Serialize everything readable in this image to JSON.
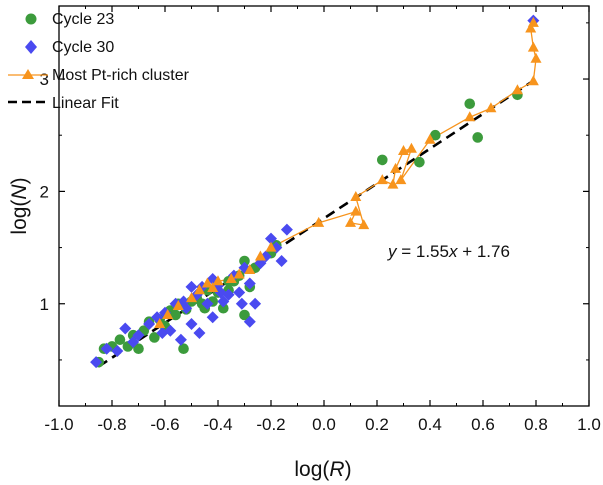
{
  "chart_data": {
    "type": "scatter",
    "xlabel": "log(R)",
    "ylabel": "log(N)",
    "xlim": [
      -1.0,
      1.0
    ],
    "ylim": [
      0.09,
      3.65
    ],
    "xticks": [
      -1.0,
      -0.8,
      -0.6,
      -0.4,
      -0.2,
      0.0,
      0.2,
      0.4,
      0.6,
      0.8,
      1.0
    ],
    "xtick_labels": [
      "-1.0",
      "-0.8",
      "-0.6",
      "-0.4",
      "-0.2",
      "0.0",
      "0.2",
      "0.4",
      "0.6",
      "0.8",
      "1.0"
    ],
    "yticks": [
      1,
      2,
      3
    ],
    "ytick_labels": [
      "1",
      "2",
      "3"
    ],
    "legend_position": "top-left",
    "annotation": {
      "y": "y",
      "eq": " = 1.55",
      "x": "x",
      "rest": " + 1.76"
    },
    "colors": {
      "cycle23": "#3c9b3c",
      "cycle30": "#4a4af0",
      "cluster": "#f7941d",
      "fit": "#000000"
    },
    "series": [
      {
        "name": "Cycle 23",
        "marker": "circle",
        "points": [
          [
            -0.85,
            0.48
          ],
          [
            -0.83,
            0.6
          ],
          [
            -0.8,
            0.62
          ],
          [
            -0.77,
            0.68
          ],
          [
            -0.74,
            0.62
          ],
          [
            -0.72,
            0.72
          ],
          [
            -0.7,
            0.6
          ],
          [
            -0.68,
            0.76
          ],
          [
            -0.66,
            0.84
          ],
          [
            -0.64,
            0.7
          ],
          [
            -0.62,
            0.86
          ],
          [
            -0.6,
            0.8
          ],
          [
            -0.58,
            0.94
          ],
          [
            -0.56,
            0.9
          ],
          [
            -0.55,
            1.0
          ],
          [
            -0.53,
            0.6
          ],
          [
            -0.52,
            0.95
          ],
          [
            -0.5,
            1.02
          ],
          [
            -0.48,
            1.05
          ],
          [
            -0.46,
            1.0
          ],
          [
            -0.44,
            1.12
          ],
          [
            -0.42,
            1.02
          ],
          [
            -0.4,
            1.1
          ],
          [
            -0.38,
            0.96
          ],
          [
            -0.36,
            1.2
          ],
          [
            -0.34,
            1.2
          ],
          [
            -0.32,
            1.25
          ],
          [
            -0.3,
            0.9
          ],
          [
            -0.28,
            1.15
          ],
          [
            -0.26,
            1.32
          ],
          [
            -0.3,
            1.38
          ],
          [
            -0.2,
            1.45
          ],
          [
            -0.18,
            1.52
          ],
          [
            -0.36,
            1.12
          ],
          [
            -0.45,
            0.96
          ],
          [
            0.22,
            2.28
          ],
          [
            0.36,
            2.26
          ],
          [
            0.42,
            2.5
          ],
          [
            0.55,
            2.78
          ],
          [
            0.58,
            2.48
          ],
          [
            0.73,
            2.86
          ]
        ]
      },
      {
        "name": "Cycle 30",
        "marker": "diamond",
        "points": [
          [
            -0.86,
            0.48
          ],
          [
            -0.82,
            0.6
          ],
          [
            -0.78,
            0.58
          ],
          [
            -0.75,
            0.78
          ],
          [
            -0.72,
            0.66
          ],
          [
            -0.7,
            0.72
          ],
          [
            -0.66,
            0.82
          ],
          [
            -0.63,
            0.88
          ],
          [
            -0.61,
            0.74
          ],
          [
            -0.58,
            0.76
          ],
          [
            -0.56,
            1.0
          ],
          [
            -0.54,
            0.68
          ],
          [
            -0.52,
            0.96
          ],
          [
            -0.5,
            1.15
          ],
          [
            -0.48,
            1.08
          ],
          [
            -0.47,
            0.74
          ],
          [
            -0.46,
            1.15
          ],
          [
            -0.44,
            1.0
          ],
          [
            -0.42,
            1.22
          ],
          [
            -0.4,
            1.16
          ],
          [
            -0.38,
            1.02
          ],
          [
            -0.36,
            1.08
          ],
          [
            -0.34,
            1.25
          ],
          [
            -0.32,
            1.1
          ],
          [
            -0.3,
            1.32
          ],
          [
            -0.28,
            1.18
          ],
          [
            -0.26,
            1.0
          ],
          [
            -0.24,
            1.36
          ],
          [
            -0.22,
            1.42
          ],
          [
            -0.2,
            1.58
          ],
          [
            -0.18,
            1.5
          ],
          [
            -0.16,
            1.38
          ],
          [
            -0.14,
            1.66
          ],
          [
            -0.6,
            0.92
          ],
          [
            -0.53,
            1.02
          ],
          [
            -0.5,
            0.82
          ],
          [
            -0.42,
            0.88
          ],
          [
            -0.39,
            1.1
          ],
          [
            -0.31,
            1.0
          ],
          [
            -0.28,
            0.84
          ],
          [
            0.79,
            3.52
          ]
        ]
      },
      {
        "name": "Most Pt-rich cluster",
        "marker": "triangle",
        "points": [
          [
            -0.62,
            0.82
          ],
          [
            -0.59,
            0.9
          ],
          [
            -0.55,
            0.98
          ],
          [
            -0.5,
            1.05
          ],
          [
            -0.47,
            1.12
          ],
          [
            -0.44,
            1.18
          ],
          [
            -0.42,
            1.14
          ],
          [
            -0.4,
            1.2
          ],
          [
            -0.35,
            1.22
          ],
          [
            -0.32,
            1.26
          ],
          [
            -0.28,
            1.3
          ],
          [
            -0.24,
            1.42
          ],
          [
            -0.2,
            1.5
          ],
          [
            -0.02,
            1.72
          ],
          [
            0.12,
            1.82
          ],
          [
            0.1,
            1.72
          ],
          [
            0.15,
            1.7
          ],
          [
            0.12,
            1.95
          ],
          [
            0.22,
            2.1
          ],
          [
            0.26,
            2.06
          ],
          [
            0.27,
            2.2
          ],
          [
            0.3,
            2.36
          ],
          [
            0.33,
            2.38
          ],
          [
            0.29,
            2.1
          ],
          [
            0.4,
            2.46
          ],
          [
            0.55,
            2.66
          ],
          [
            0.63,
            2.74
          ],
          [
            0.73,
            2.9
          ],
          [
            0.79,
            2.98
          ],
          [
            0.8,
            3.18
          ],
          [
            0.79,
            3.28
          ],
          [
            0.78,
            3.45
          ],
          [
            0.79,
            3.5
          ]
        ]
      }
    ],
    "fit": {
      "name": "Linear Fit",
      "slope": 1.55,
      "intercept": 1.76,
      "x_range": [
        -0.85,
        0.8
      ]
    }
  }
}
